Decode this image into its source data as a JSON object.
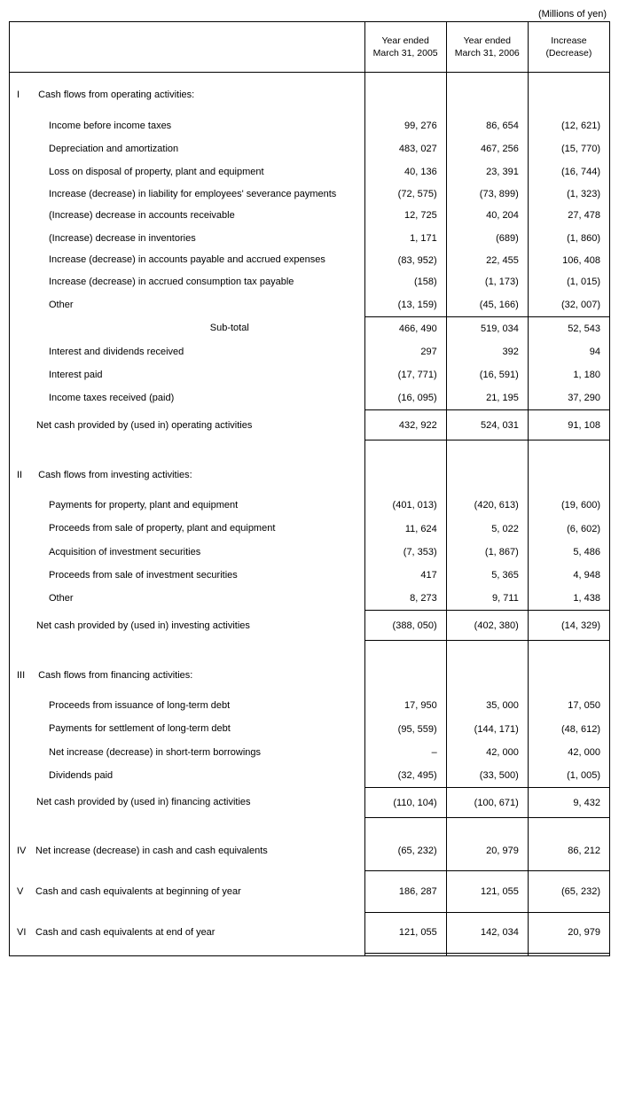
{
  "unit_label": "(Millions of yen)",
  "headers": {
    "col1": "Year ended\nMarch 31, 2005",
    "col2": "Year ended\nMarch 31, 2006",
    "col3": "Increase\n(Decrease)"
  },
  "sections": [
    {
      "roman": "I",
      "title": "Cash flows from operating activities:",
      "items": [
        {
          "label": "Income before income taxes",
          "v1": "99, 276",
          "v2": "86, 654",
          "v3": "(12, 621)"
        },
        {
          "label": "Depreciation and amortization",
          "v1": "483, 027",
          "v2": "467, 256",
          "v3": "(15, 770)"
        },
        {
          "label": "Loss on disposal of property, plant and equipment",
          "v1": "40, 136",
          "v2": "23, 391",
          "v3": "(16, 744)"
        },
        {
          "label": "Increase (decrease) in liability for employees' severance payments",
          "v1": "(72, 575)",
          "v2": "(73, 899)",
          "v3": "(1, 323)",
          "tight": true
        },
        {
          "label": "(Increase) decrease in accounts receivable",
          "v1": "12, 725",
          "v2": "40, 204",
          "v3": "27, 478"
        },
        {
          "label": "(Increase) decrease in inventories",
          "v1": "1, 171",
          "v2": "(689)",
          "v3": "(1, 860)"
        },
        {
          "label": "Increase (decrease) in accounts payable and accrued expenses",
          "v1": "(83, 952)",
          "v2": "22, 455",
          "v3": "106, 408",
          "tight": true
        },
        {
          "label": "Increase (decrease) in accrued consumption tax payable",
          "v1": "(158)",
          "v2": "(1, 173)",
          "v3": "(1, 015)"
        },
        {
          "label": "Other",
          "v1": "(13, 159)",
          "v2": "(45, 166)",
          "v3": "(32, 007)"
        }
      ],
      "subtotal": {
        "label": "Sub-total",
        "v1": "466, 490",
        "v2": "519, 034",
        "v3": "52, 543"
      },
      "after_sub": [
        {
          "label": "Interest and dividends received",
          "v1": "297",
          "v2": "392",
          "v3": "94"
        },
        {
          "label": "Interest paid",
          "v1": "(17, 771)",
          "v2": "(16, 591)",
          "v3": "1, 180"
        },
        {
          "label": "Income taxes received (paid)",
          "v1": "(16, 095)",
          "v2": "21, 195",
          "v3": "37, 290"
        }
      ],
      "net": {
        "label": "Net cash provided by (used in) operating activities",
        "v1": "432, 922",
        "v2": "524, 031",
        "v3": "91, 108"
      }
    },
    {
      "roman": "II",
      "title": "Cash flows from investing activities:",
      "items": [
        {
          "label": "Payments for property, plant and equipment",
          "v1": "(401, 013)",
          "v2": "(420, 613)",
          "v3": "(19, 600)"
        },
        {
          "label": "Proceeds from sale of property, plant and equipment",
          "v1": "11, 624",
          "v2": "5, 022",
          "v3": "(6, 602)"
        },
        {
          "label": "Acquisition of investment securities",
          "v1": "(7, 353)",
          "v2": "(1, 867)",
          "v3": "5, 486"
        },
        {
          "label": "Proceeds from sale of investment securities",
          "v1": "417",
          "v2": "5, 365",
          "v3": "4, 948"
        },
        {
          "label": "Other",
          "v1": "8, 273",
          "v2": "9, 711",
          "v3": "1, 438"
        }
      ],
      "net": {
        "label": "Net cash provided by (used in) investing activities",
        "v1": "(388, 050)",
        "v2": "(402, 380)",
        "v3": "(14, 329)"
      }
    },
    {
      "roman": "III",
      "title": "Cash flows from financing activities:",
      "items": [
        {
          "label": "Proceeds from issuance of long-term debt",
          "v1": "17, 950",
          "v2": "35, 000",
          "v3": "17, 050"
        },
        {
          "label": "Payments for settlement of long-term debt",
          "v1": "(95, 559)",
          "v2": "(144, 171)",
          "v3": "(48, 612)"
        },
        {
          "label": "Net increase (decrease) in short-term borrowings",
          "v1": "–",
          "v2": "42, 000",
          "v3": "42, 000"
        },
        {
          "label": "Dividends paid",
          "v1": "(32, 495)",
          "v2": "(33, 500)",
          "v3": "(1, 005)"
        }
      ],
      "net": {
        "label": "Net cash provided by (used in) financing activities",
        "v1": "(110, 104)",
        "v2": "(100, 671)",
        "v3": "9, 432"
      }
    }
  ],
  "summaries": [
    {
      "roman": "IV",
      "label": "Net increase (decrease) in cash and cash equivalents",
      "v1": "(65, 232)",
      "v2": "20, 979",
      "v3": "86, 212"
    },
    {
      "roman": "V",
      "label": "Cash and cash equivalents at beginning of year",
      "v1": "186, 287",
      "v2": "121, 055",
      "v3": "(65, 232)"
    },
    {
      "roman": "VI",
      "label": "Cash and cash equivalents at end of year",
      "v1": "121, 055",
      "v2": "142, 034",
      "v3": "20, 979"
    }
  ]
}
